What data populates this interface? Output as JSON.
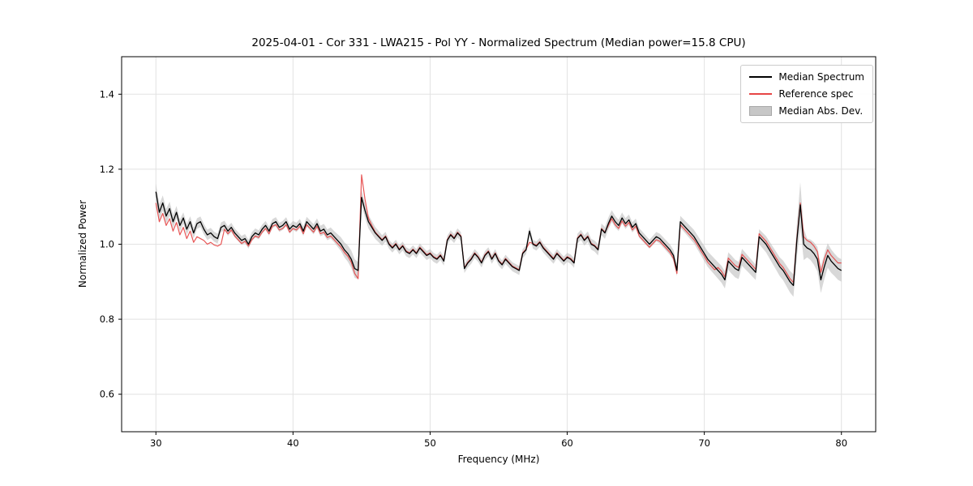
{
  "figure": {
    "background": "#ffffff"
  },
  "chart_data": {
    "type": "line",
    "title": "2025-04-01 - Cor 331 - LWA215 - Pol YY - Normalized Spectrum (Median power=15.8 CPU)",
    "xlabel": "Frequency (MHz)",
    "ylabel": "Normalized Power",
    "median_power_cpu": 15.8,
    "xlim": [
      27.5,
      82.5
    ],
    "ylim": [
      0.5,
      1.5
    ],
    "grid": true,
    "legend_position": "upper right",
    "xticks": [
      30,
      40,
      50,
      60,
      70,
      80
    ],
    "xtick_labels": [
      "30",
      "40",
      "50",
      "60",
      "70",
      "80"
    ],
    "yticks": [
      0.6,
      0.8,
      1.0,
      1.2,
      1.4
    ],
    "ytick_labels": [
      "0.6",
      "0.8",
      "1.0",
      "1.2",
      "1.4"
    ],
    "x_start": 30.0,
    "x_step": 0.25,
    "series": [
      {
        "name": "Median Spectrum",
        "color": "#000000",
        "values": [
          1.14,
          1.085,
          1.11,
          1.075,
          1.095,
          1.06,
          1.085,
          1.05,
          1.07,
          1.04,
          1.06,
          1.03,
          1.055,
          1.06,
          1.04,
          1.025,
          1.03,
          1.02,
          1.015,
          1.045,
          1.05,
          1.035,
          1.045,
          1.03,
          1.02,
          1.01,
          1.015,
          1.0,
          1.02,
          1.03,
          1.025,
          1.04,
          1.05,
          1.035,
          1.055,
          1.06,
          1.045,
          1.05,
          1.06,
          1.04,
          1.05,
          1.045,
          1.055,
          1.035,
          1.06,
          1.05,
          1.04,
          1.055,
          1.035,
          1.04,
          1.025,
          1.03,
          1.02,
          1.01,
          1.0,
          0.985,
          0.975,
          0.96,
          0.935,
          0.93,
          1.125,
          1.09,
          1.06,
          1.045,
          1.03,
          1.02,
          1.01,
          1.02,
          1.0,
          0.99,
          1.0,
          0.985,
          0.995,
          0.98,
          0.975,
          0.985,
          0.975,
          0.99,
          0.98,
          0.97,
          0.975,
          0.965,
          0.96,
          0.97,
          0.955,
          1.01,
          1.025,
          1.015,
          1.03,
          1.02,
          0.935,
          0.95,
          0.96,
          0.975,
          0.965,
          0.95,
          0.97,
          0.98,
          0.96,
          0.975,
          0.955,
          0.945,
          0.96,
          0.95,
          0.94,
          0.935,
          0.93,
          0.975,
          0.985,
          1.035,
          1.0,
          0.995,
          1.005,
          0.99,
          0.98,
          0.97,
          0.96,
          0.975,
          0.965,
          0.955,
          0.965,
          0.96,
          0.95,
          1.015,
          1.025,
          1.01,
          1.02,
          1.0,
          0.995,
          0.985,
          1.04,
          1.03,
          1.055,
          1.075,
          1.06,
          1.05,
          1.07,
          1.055,
          1.065,
          1.045,
          1.055,
          1.03,
          1.02,
          1.01,
          1.0,
          1.01,
          1.02,
          1.015,
          1.005,
          0.995,
          0.985,
          0.97,
          0.93,
          1.06,
          1.05,
          1.04,
          1.03,
          1.02,
          1.005,
          0.99,
          0.975,
          0.96,
          0.95,
          0.94,
          0.93,
          0.92,
          0.905,
          0.955,
          0.945,
          0.935,
          0.93,
          0.965,
          0.955,
          0.945,
          0.935,
          0.925,
          1.02,
          1.01,
          1.0,
          0.985,
          0.97,
          0.955,
          0.94,
          0.93,
          0.915,
          0.9,
          0.89,
          1.01,
          1.105,
          1.0,
          0.99,
          0.985,
          0.975,
          0.96,
          0.905,
          0.94,
          0.97,
          0.955,
          0.945,
          0.935,
          0.93
        ]
      },
      {
        "name": "Reference spec",
        "color": "#e64545",
        "values": [
          1.11,
          1.06,
          1.082,
          1.05,
          1.068,
          1.035,
          1.058,
          1.025,
          1.045,
          1.015,
          1.035,
          1.005,
          1.02,
          1.015,
          1.01,
          1.0,
          1.005,
          0.998,
          0.995,
          1.0,
          1.04,
          1.028,
          1.038,
          1.022,
          1.012,
          1.002,
          1.008,
          0.995,
          1.012,
          1.022,
          1.018,
          1.032,
          1.042,
          1.028,
          1.048,
          1.052,
          1.038,
          1.042,
          1.052,
          1.032,
          1.042,
          1.038,
          1.048,
          1.028,
          1.052,
          1.042,
          1.032,
          1.048,
          1.028,
          1.032,
          1.018,
          1.022,
          1.012,
          1.002,
          0.992,
          0.978,
          0.968,
          0.952,
          0.922,
          0.908,
          1.185,
          1.12,
          1.07,
          1.05,
          1.032,
          1.022,
          1.012,
          1.022,
          1.002,
          0.992,
          1.002,
          0.987,
          0.997,
          0.982,
          0.977,
          0.987,
          0.977,
          0.992,
          0.982,
          0.972,
          0.977,
          0.967,
          0.962,
          0.972,
          0.957,
          1.012,
          1.027,
          1.017,
          1.032,
          1.022,
          0.937,
          0.952,
          0.962,
          0.977,
          0.967,
          0.952,
          0.972,
          0.982,
          0.962,
          0.977,
          0.957,
          0.947,
          0.962,
          0.952,
          0.942,
          0.937,
          0.932,
          0.977,
          0.987,
          1.005,
          1.002,
          0.997,
          1.007,
          0.992,
          0.982,
          0.972,
          0.962,
          0.977,
          0.967,
          0.957,
          0.967,
          0.962,
          0.952,
          1.017,
          1.027,
          1.012,
          1.022,
          1.002,
          0.997,
          0.987,
          1.042,
          1.032,
          1.05,
          1.068,
          1.052,
          1.042,
          1.062,
          1.048,
          1.058,
          1.038,
          1.048,
          1.022,
          1.012,
          1.002,
          0.992,
          1.002,
          1.012,
          1.008,
          0.998,
          0.988,
          0.978,
          0.962,
          0.922,
          1.052,
          1.042,
          1.032,
          1.022,
          1.012,
          0.998,
          0.982,
          0.968,
          0.952,
          0.942,
          0.932,
          0.938,
          0.928,
          0.913,
          0.963,
          0.953,
          0.943,
          0.938,
          0.973,
          0.963,
          0.953,
          0.943,
          0.933,
          1.028,
          1.018,
          1.008,
          0.993,
          0.978,
          0.963,
          0.948,
          0.938,
          0.923,
          0.908,
          0.898,
          1.015,
          1.11,
          1.02,
          1.01,
          1.005,
          0.995,
          0.98,
          0.925,
          0.96,
          0.985,
          0.97,
          0.96,
          0.95,
          0.95
        ]
      }
    ],
    "mad_band": {
      "name": "Median Abs. Dev.",
      "color": "#b8b8b8",
      "around_series": "Median Spectrum",
      "halfwidth_keypoints": [
        [
          30,
          0.022
        ],
        [
          32,
          0.015
        ],
        [
          36,
          0.012
        ],
        [
          40,
          0.012
        ],
        [
          43,
          0.015
        ],
        [
          44.5,
          0.025
        ],
        [
          45,
          0.02
        ],
        [
          47,
          0.012
        ],
        [
          52,
          0.012
        ],
        [
          57,
          0.012
        ],
        [
          60,
          0.012
        ],
        [
          63,
          0.016
        ],
        [
          66,
          0.012
        ],
        [
          68,
          0.015
        ],
        [
          70,
          0.02
        ],
        [
          72,
          0.024
        ],
        [
          74,
          0.02
        ],
        [
          75.5,
          0.025
        ],
        [
          76.5,
          0.03
        ],
        [
          77,
          0.06
        ],
        [
          77.5,
          0.025
        ],
        [
          78.5,
          0.035
        ],
        [
          79.5,
          0.03
        ],
        [
          80,
          0.03
        ]
      ]
    }
  },
  "legend": {
    "items": [
      {
        "label": "Median Spectrum",
        "type": "line",
        "color": "#000000"
      },
      {
        "label": "Reference spec",
        "type": "line",
        "color": "#e64545"
      },
      {
        "label": "Median Abs. Dev.",
        "type": "patch",
        "color": "#c7c7c7"
      }
    ]
  }
}
